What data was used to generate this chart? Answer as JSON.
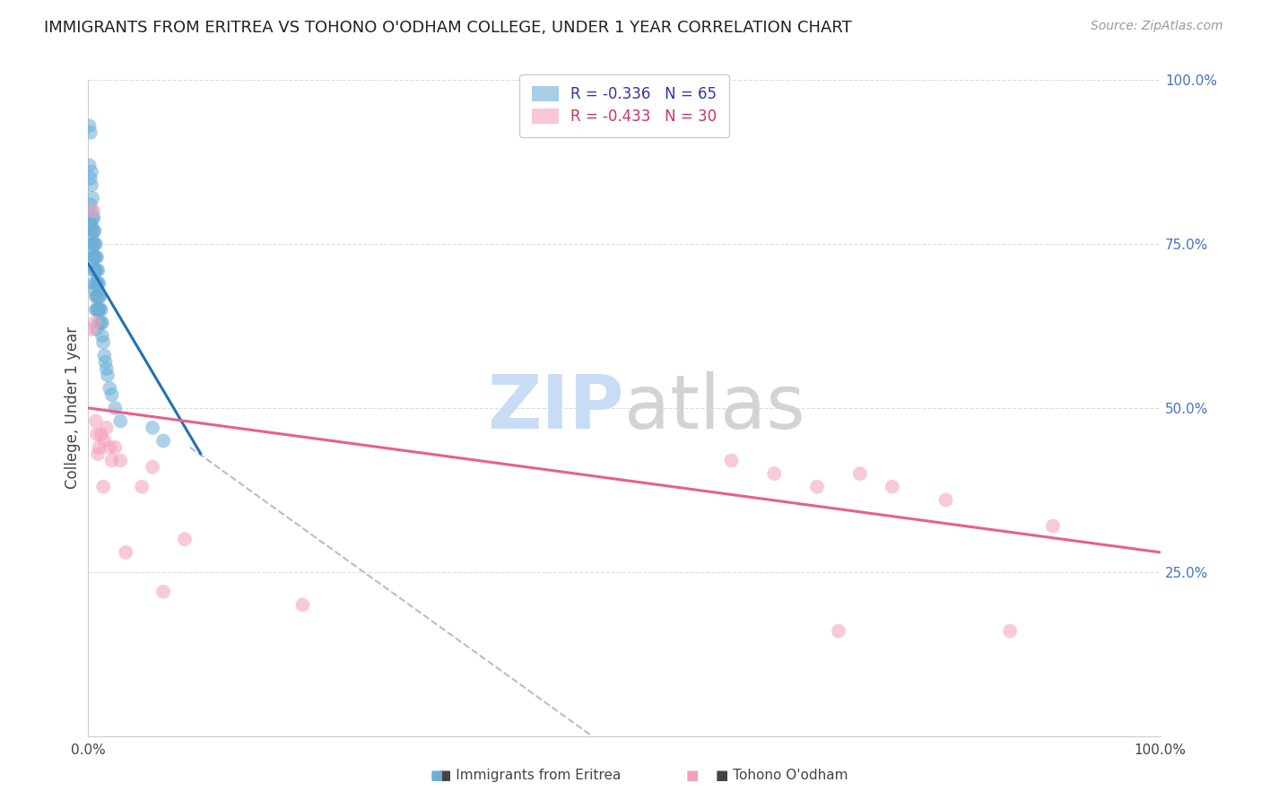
{
  "title": "IMMIGRANTS FROM ERITREA VS TOHONO O'ODHAM COLLEGE, UNDER 1 YEAR CORRELATION CHART",
  "source": "Source: ZipAtlas.com",
  "ylabel": "College, Under 1 year",
  "right_ytick_labels": [
    "100.0%",
    "75.0%",
    "50.0%",
    "25.0%"
  ],
  "right_ytick_values": [
    1.0,
    0.75,
    0.5,
    0.25
  ],
  "blue_scatter_x": [
    0.001,
    0.001,
    0.002,
    0.002,
    0.002,
    0.002,
    0.003,
    0.003,
    0.003,
    0.003,
    0.003,
    0.003,
    0.004,
    0.004,
    0.004,
    0.004,
    0.004,
    0.005,
    0.005,
    0.005,
    0.005,
    0.005,
    0.005,
    0.006,
    0.006,
    0.006,
    0.006,
    0.006,
    0.007,
    0.007,
    0.007,
    0.007,
    0.007,
    0.007,
    0.008,
    0.008,
    0.008,
    0.008,
    0.008,
    0.009,
    0.009,
    0.009,
    0.009,
    0.01,
    0.01,
    0.01,
    0.01,
    0.011,
    0.011,
    0.012,
    0.012,
    0.013,
    0.013,
    0.014,
    0.015,
    0.016,
    0.017,
    0.018,
    0.02,
    0.022,
    0.025,
    0.03,
    0.06,
    0.07,
    0.008
  ],
  "blue_scatter_y": [
    0.93,
    0.87,
    0.92,
    0.85,
    0.81,
    0.78,
    0.86,
    0.84,
    0.8,
    0.78,
    0.76,
    0.74,
    0.82,
    0.79,
    0.77,
    0.75,
    0.73,
    0.79,
    0.77,
    0.75,
    0.73,
    0.71,
    0.69,
    0.77,
    0.75,
    0.73,
    0.71,
    0.68,
    0.75,
    0.73,
    0.71,
    0.69,
    0.67,
    0.65,
    0.73,
    0.71,
    0.69,
    0.67,
    0.65,
    0.71,
    0.69,
    0.67,
    0.65,
    0.69,
    0.67,
    0.65,
    0.63,
    0.67,
    0.65,
    0.65,
    0.63,
    0.63,
    0.61,
    0.6,
    0.58,
    0.57,
    0.56,
    0.55,
    0.53,
    0.52,
    0.5,
    0.48,
    0.47,
    0.45,
    0.62
  ],
  "pink_scatter_x": [
    0.003,
    0.005,
    0.006,
    0.007,
    0.008,
    0.009,
    0.01,
    0.012,
    0.014,
    0.015,
    0.017,
    0.02,
    0.022,
    0.025,
    0.03,
    0.035,
    0.05,
    0.06,
    0.07,
    0.09,
    0.2,
    0.6,
    0.64,
    0.68,
    0.7,
    0.72,
    0.75,
    0.8,
    0.86,
    0.9
  ],
  "pink_scatter_y": [
    0.62,
    0.8,
    0.63,
    0.48,
    0.46,
    0.43,
    0.44,
    0.46,
    0.38,
    0.45,
    0.47,
    0.44,
    0.42,
    0.44,
    0.42,
    0.28,
    0.38,
    0.41,
    0.22,
    0.3,
    0.2,
    0.42,
    0.4,
    0.38,
    0.16,
    0.4,
    0.38,
    0.36,
    0.16,
    0.32
  ],
  "blue_line_x": [
    0.0,
    0.105
  ],
  "blue_line_y": [
    0.72,
    0.43
  ],
  "gray_line_x": [
    0.095,
    0.47
  ],
  "gray_line_y": [
    0.44,
    0.0
  ],
  "pink_line_x": [
    0.0,
    1.0
  ],
  "pink_line_y": [
    0.5,
    0.28
  ],
  "blue_color": "#6BAED6",
  "pink_color": "#F4A0B8",
  "blue_line_color": "#2171B5",
  "pink_line_color": "#E8608A",
  "gray_line_color": "#BBBBCC",
  "right_axis_color": "#4472C4",
  "background_color": "#FFFFFF",
  "grid_color": "#DDDDDD",
  "xlim": [
    0.0,
    1.0
  ],
  "ylim": [
    0.0,
    1.0
  ],
  "legend_label1": "R = -0.336   N = 65",
  "legend_label2": "R = -0.433   N = 30",
  "legend_text_color1": "#3333AA",
  "legend_text_color2": "#CC3366",
  "title_fontsize": 13,
  "source_text": "Source: ZipAtlas.com",
  "watermark_zip_color": "#C8DCF5",
  "watermark_atlas_color": "#D3D3D3"
}
